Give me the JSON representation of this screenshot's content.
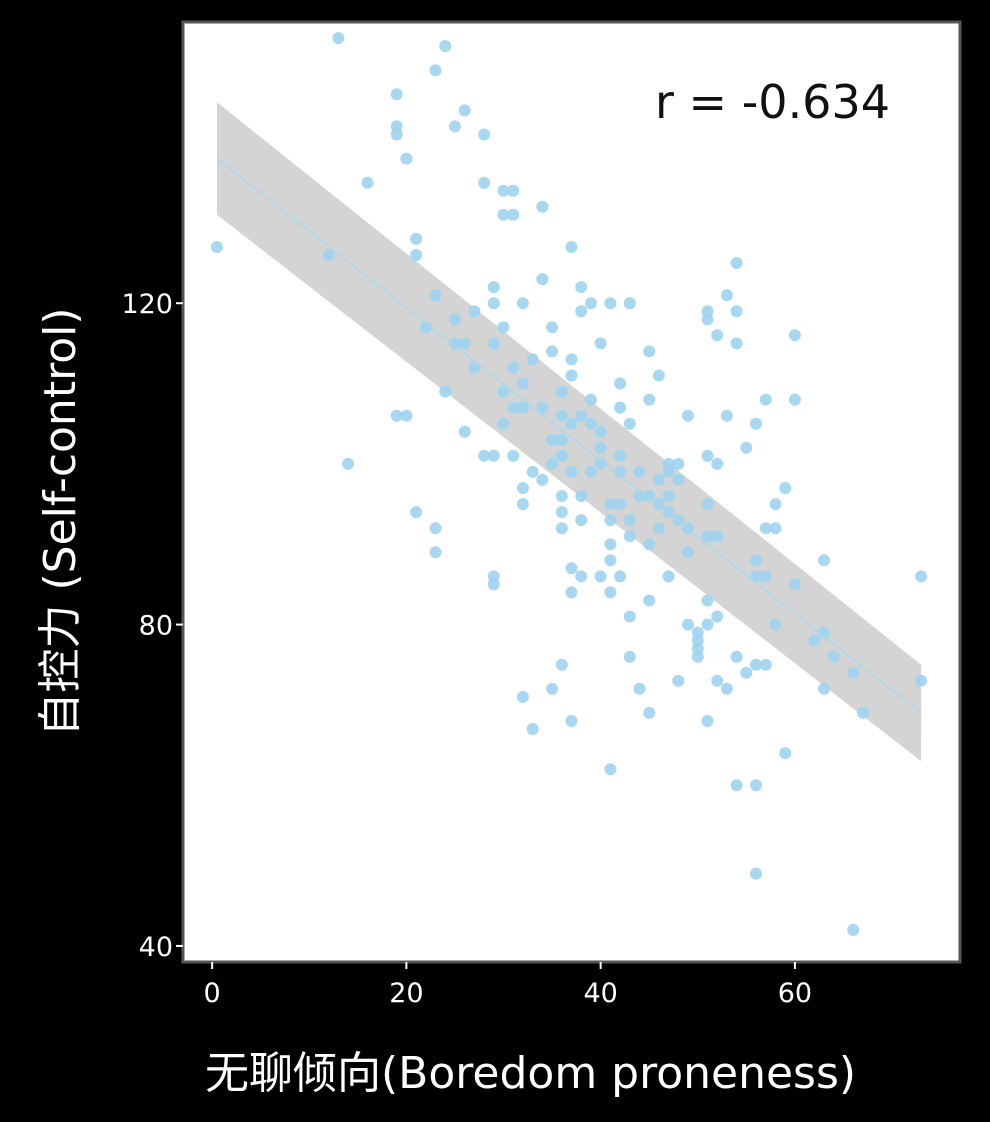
{
  "chart_data": {
    "type": "scatter",
    "xlabel": "无聊倾向(Boredom proneness)",
    "ylabel": "自控力 (Self-control)",
    "annotation": "r = -0.634",
    "xlim": [
      -3,
      77
    ],
    "ylim": [
      38,
      155
    ],
    "xticks": [
      0,
      20,
      40,
      60
    ],
    "yticks": [
      40,
      80,
      120
    ],
    "grid": false,
    "colors": {
      "points": "#9fd3ef",
      "fit_line": "#a9d7ee",
      "confidence_band": "#cdcdcd",
      "plot_background": "#ffffff",
      "figure_background": "#000000"
    },
    "regression": {
      "x": [
        0.5,
        73
      ],
      "y": [
        138,
        69
      ],
      "band_upper": [
        145,
        75
      ],
      "band_lower": [
        131,
        63
      ]
    },
    "points": [
      [
        0.5,
        127
      ],
      [
        12,
        126
      ],
      [
        13,
        153
      ],
      [
        14,
        100
      ],
      [
        16,
        135
      ],
      [
        19,
        146
      ],
      [
        19,
        142
      ],
      [
        19,
        141
      ],
      [
        20,
        138
      ],
      [
        20,
        106
      ],
      [
        19,
        106
      ],
      [
        21,
        128
      ],
      [
        21,
        126
      ],
      [
        21,
        94
      ],
      [
        22,
        117
      ],
      [
        23,
        121
      ],
      [
        23,
        92
      ],
      [
        23,
        89
      ],
      [
        23,
        149
      ],
      [
        24,
        152
      ],
      [
        24,
        109
      ],
      [
        25,
        118
      ],
      [
        25,
        115
      ],
      [
        25,
        142
      ],
      [
        26,
        115
      ],
      [
        26,
        104
      ],
      [
        26,
        144
      ],
      [
        27,
        112
      ],
      [
        27,
        119
      ],
      [
        28,
        141
      ],
      [
        28,
        101
      ],
      [
        28,
        135
      ],
      [
        29,
        122
      ],
      [
        29,
        120
      ],
      [
        29,
        115
      ],
      [
        29,
        101
      ],
      [
        29,
        86
      ],
      [
        29,
        85
      ],
      [
        30,
        117
      ],
      [
        30,
        109
      ],
      [
        30,
        105
      ],
      [
        30,
        131
      ],
      [
        30,
        134
      ],
      [
        31,
        134
      ],
      [
        31,
        131
      ],
      [
        31,
        112
      ],
      [
        31,
        107
      ],
      [
        31,
        101
      ],
      [
        32,
        120
      ],
      [
        32,
        110
      ],
      [
        32,
        107
      ],
      [
        32,
        97
      ],
      [
        32,
        95
      ],
      [
        32,
        71
      ],
      [
        33,
        113
      ],
      [
        33,
        99
      ],
      [
        33,
        67
      ],
      [
        34,
        132
      ],
      [
        34,
        123
      ],
      [
        34,
        107
      ],
      [
        34,
        98
      ],
      [
        35,
        117
      ],
      [
        35,
        114
      ],
      [
        35,
        103
      ],
      [
        35,
        100
      ],
      [
        35,
        72
      ],
      [
        36,
        109
      ],
      [
        36,
        106
      ],
      [
        36,
        103
      ],
      [
        36,
        101
      ],
      [
        36,
        96
      ],
      [
        36,
        94
      ],
      [
        36,
        92
      ],
      [
        36,
        75
      ],
      [
        37,
        127
      ],
      [
        37,
        113
      ],
      [
        37,
        111
      ],
      [
        37,
        105
      ],
      [
        37,
        99
      ],
      [
        37,
        87
      ],
      [
        37,
        84
      ],
      [
        37,
        68
      ],
      [
        38,
        122
      ],
      [
        38,
        119
      ],
      [
        38,
        106
      ],
      [
        38,
        96
      ],
      [
        38,
        93
      ],
      [
        38,
        86
      ],
      [
        39,
        120
      ],
      [
        39,
        108
      ],
      [
        39,
        105
      ],
      [
        39,
        99
      ],
      [
        40,
        115
      ],
      [
        40,
        104
      ],
      [
        40,
        102
      ],
      [
        40,
        100
      ],
      [
        40,
        86
      ],
      [
        41,
        120
      ],
      [
        41,
        95
      ],
      [
        41,
        93
      ],
      [
        41,
        90
      ],
      [
        41,
        88
      ],
      [
        41,
        84
      ],
      [
        41,
        62
      ],
      [
        42,
        110
      ],
      [
        42,
        107
      ],
      [
        42,
        101
      ],
      [
        42,
        99
      ],
      [
        42,
        95
      ],
      [
        42,
        86
      ],
      [
        43,
        120
      ],
      [
        43,
        105
      ],
      [
        43,
        93
      ],
      [
        43,
        91
      ],
      [
        43,
        81
      ],
      [
        43,
        76
      ],
      [
        44,
        99
      ],
      [
        44,
        96
      ],
      [
        44,
        72
      ],
      [
        45,
        114
      ],
      [
        45,
        108
      ],
      [
        45,
        96
      ],
      [
        45,
        90
      ],
      [
        45,
        83
      ],
      [
        45,
        69
      ],
      [
        46,
        111
      ],
      [
        46,
        98
      ],
      [
        46,
        95
      ],
      [
        46,
        92
      ],
      [
        47,
        100
      ],
      [
        47,
        99
      ],
      [
        47,
        96
      ],
      [
        47,
        94
      ],
      [
        47,
        86
      ],
      [
        48,
        100
      ],
      [
        48,
        98
      ],
      [
        48,
        93
      ],
      [
        48,
        73
      ],
      [
        49,
        106
      ],
      [
        49,
        92
      ],
      [
        49,
        89
      ],
      [
        49,
        80
      ],
      [
        50,
        79
      ],
      [
        50,
        78
      ],
      [
        50,
        77
      ],
      [
        50,
        76
      ],
      [
        51,
        119
      ],
      [
        51,
        118
      ],
      [
        51,
        101
      ],
      [
        51,
        95
      ],
      [
        51,
        91
      ],
      [
        51,
        83
      ],
      [
        51,
        80
      ],
      [
        51,
        68
      ],
      [
        52,
        116
      ],
      [
        52,
        100
      ],
      [
        52,
        91
      ],
      [
        52,
        81
      ],
      [
        52,
        73
      ],
      [
        53,
        121
      ],
      [
        53,
        106
      ],
      [
        53,
        72
      ],
      [
        54,
        125
      ],
      [
        54,
        119
      ],
      [
        54,
        115
      ],
      [
        54,
        76
      ],
      [
        54,
        60
      ],
      [
        55,
        102
      ],
      [
        55,
        74
      ],
      [
        56,
        105
      ],
      [
        56,
        88
      ],
      [
        56,
        86
      ],
      [
        56,
        75
      ],
      [
        56,
        60
      ],
      [
        56,
        49
      ],
      [
        57,
        108
      ],
      [
        57,
        92
      ],
      [
        57,
        86
      ],
      [
        57,
        75
      ],
      [
        58,
        95
      ],
      [
        58,
        92
      ],
      [
        58,
        80
      ],
      [
        59,
        97
      ],
      [
        59,
        64
      ],
      [
        60,
        116
      ],
      [
        60,
        108
      ],
      [
        60,
        85
      ],
      [
        62,
        78
      ],
      [
        63,
        88
      ],
      [
        63,
        79
      ],
      [
        63,
        72
      ],
      [
        64,
        76
      ],
      [
        66,
        74
      ],
      [
        66,
        42
      ],
      [
        67,
        69
      ],
      [
        73,
        86
      ],
      [
        73,
        73
      ]
    ]
  }
}
